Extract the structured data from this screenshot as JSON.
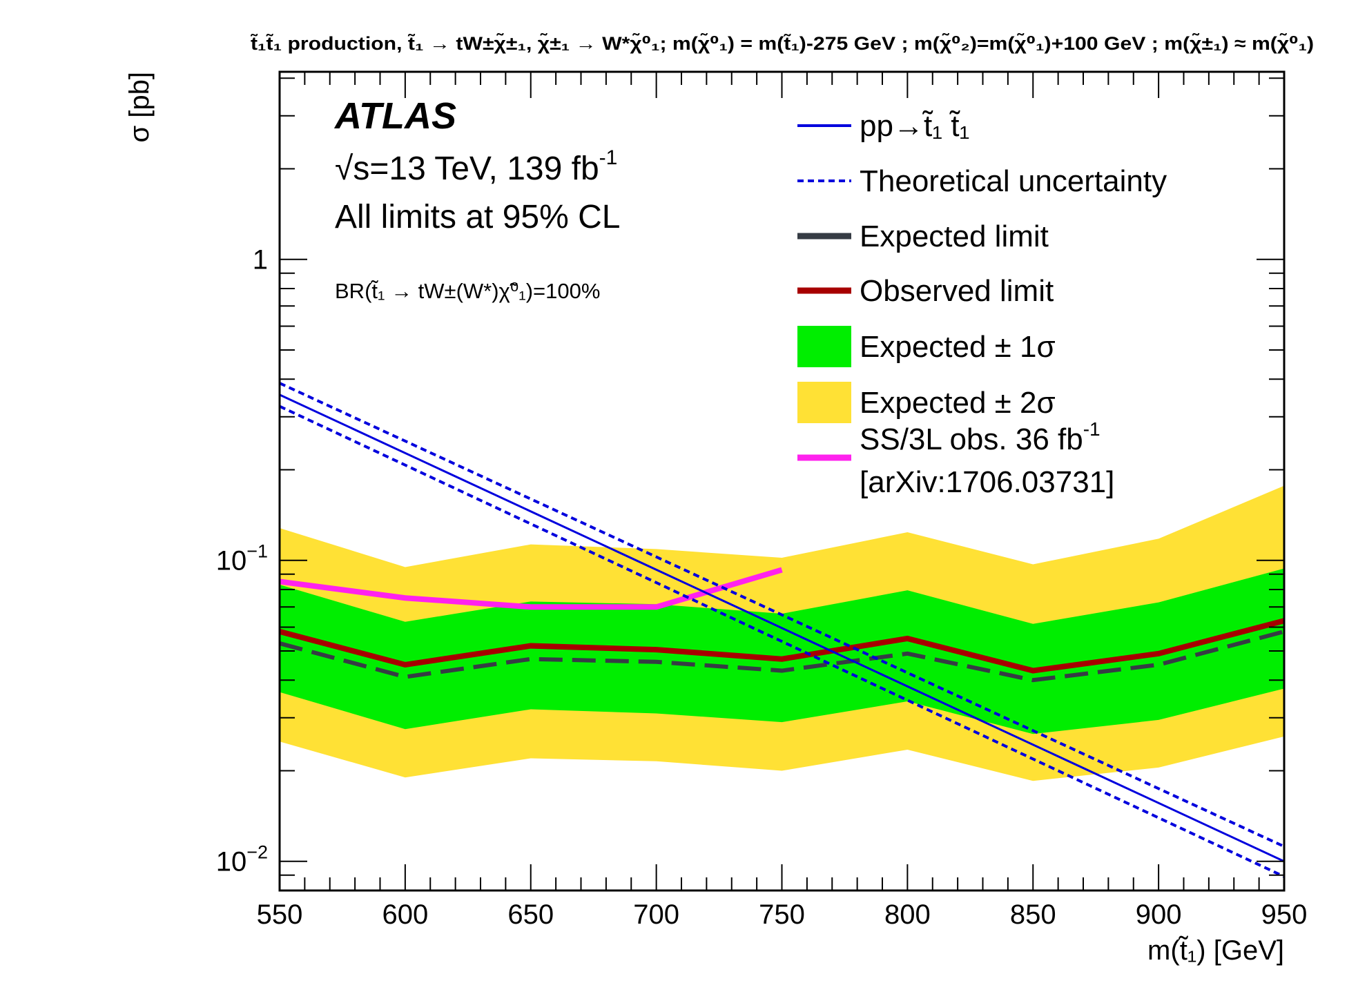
{
  "chart_data": {
    "type": "line",
    "title": "t̃₁t̃₁ production,  t̃₁ → tW±χ̃±₁,  χ̃±₁ → W*χ̃⁰₁;  m(χ̃⁰₁) = m(t̃₁)-275 GeV ;  m(χ̃⁰₂)=m(χ̃⁰₁)+100 GeV ;  m(χ̃±₁) ≈ m(χ̃⁰₁)",
    "xlabel": "m(t̃₁) [GeV]",
    "ylabel": "σ [pb]",
    "xlim": [
      550,
      950
    ],
    "ylim": [
      0.008,
      4.2
    ],
    "yscale": "log",
    "xticks": [
      550,
      600,
      650,
      700,
      750,
      800,
      850,
      900,
      950
    ],
    "yticks": [
      {
        "value": 1,
        "label": "1"
      },
      {
        "value": 0.1,
        "label": "10",
        "exp": "−1"
      },
      {
        "value": 0.01,
        "label": "10",
        "exp": "−2"
      }
    ],
    "annotations": {
      "experiment": "ATLAS",
      "energy": "√s=13 TeV, 139 fb",
      "energy_exp": "-1",
      "cl": "All limits at 95% CL",
      "br": "BR(t̃₁ → tW±(W*)χ̃⁰₁)=100%"
    },
    "x": [
      550,
      600,
      650,
      700,
      750,
      800,
      850,
      900,
      950
    ],
    "band_2sigma": {
      "name": "Expected ± 2σ",
      "color": "#ffe135",
      "low": [
        0.025,
        0.019,
        0.022,
        0.0215,
        0.02,
        0.0235,
        0.0185,
        0.0205,
        0.026
      ],
      "high": [
        0.128,
        0.095,
        0.113,
        0.109,
        0.102,
        0.124,
        0.097,
        0.118,
        0.177
      ]
    },
    "band_1sigma": {
      "name": "Expected ± 1σ",
      "color": "#00ee00",
      "low": [
        0.0365,
        0.0275,
        0.032,
        0.031,
        0.029,
        0.034,
        0.0265,
        0.0295,
        0.0375
      ],
      "high": [
        0.083,
        0.0625,
        0.073,
        0.0715,
        0.0665,
        0.0795,
        0.0615,
        0.0725,
        0.094
      ]
    },
    "series": [
      {
        "name": "pp→t̃₁ t̃₁",
        "style": "solid",
        "color": "#0000dd",
        "x": [
          550,
          950
        ],
        "values": [
          0.355,
          0.01
        ]
      },
      {
        "name": "Theoretical uncertainty",
        "style": "dotted",
        "color": "#0000dd",
        "x": [
          550,
          950
        ],
        "values": [
          0.388,
          0.0112
        ]
      },
      {
        "style": "dotted",
        "color": "#0000dd",
        "x": [
          550,
          950
        ],
        "values": [
          0.325,
          0.0089
        ]
      },
      {
        "name": "Expected limit",
        "style": "dashed",
        "color": "#363c44",
        "x": [
          550,
          600,
          650,
          700,
          750,
          800,
          850,
          900,
          950
        ],
        "values": [
          0.053,
          0.041,
          0.047,
          0.046,
          0.043,
          0.049,
          0.04,
          0.045,
          0.058
        ]
      },
      {
        "name": "Observed limit",
        "style": "solid-thick",
        "color": "#a70000",
        "x": [
          550,
          600,
          650,
          700,
          750,
          800,
          850,
          900,
          950
        ],
        "values": [
          0.058,
          0.045,
          0.052,
          0.0505,
          0.047,
          0.055,
          0.043,
          0.049,
          0.063
        ]
      },
      {
        "name": "SS/3L obs. 36 fb",
        "name_exp": "-1",
        "name_line2": "[arXiv:1706.03731]",
        "style": "solid-thick",
        "color": "#ff22ee",
        "x": [
          550,
          600,
          650,
          700,
          750
        ],
        "values": [
          0.085,
          0.075,
          0.07,
          0.07,
          0.093
        ]
      }
    ],
    "legend": {
      "placement": "top-right",
      "entries": [
        {
          "label": "pp→t̃₁ t̃₁",
          "kind": "line-solid",
          "color": "#0000dd"
        },
        {
          "label": "Theoretical uncertainty",
          "kind": "line-dotted",
          "color": "#0000dd"
        },
        {
          "label": "Expected limit",
          "kind": "line-thick",
          "color": "#363c44"
        },
        {
          "label": "Observed limit",
          "kind": "line-thick",
          "color": "#a70000"
        },
        {
          "label": "Expected ± 1σ",
          "kind": "box",
          "color": "#00ee00"
        },
        {
          "label": "Expected ± 2σ",
          "kind": "box",
          "color": "#ffe135"
        },
        {
          "label": "SS/3L obs. 36 fb",
          "label_exp": "-1",
          "label_line2": "[arXiv:1706.03731]",
          "kind": "line-thick",
          "color": "#ff22ee"
        }
      ]
    }
  }
}
